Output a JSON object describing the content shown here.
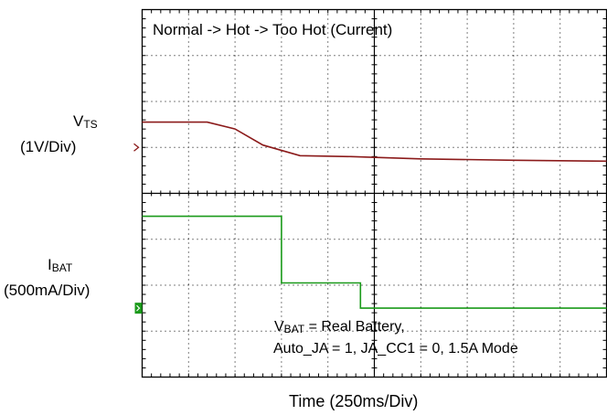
{
  "chart_data": {
    "type": "line",
    "title": "Normal -> Hot -> Too Hot (Current)",
    "xlabel": "Time  (250ms/Div)",
    "x_unit_per_div": "250ms",
    "x_divisions": 10,
    "y_divisions": 8,
    "grid": true,
    "annotations": [
      {
        "main": "V",
        "sub": "BAT",
        "rest": " = Real Battery,"
      },
      {
        "text": "Auto_JA = 1, JA_CC1 = 0, 1.5A Mode"
      }
    ],
    "series": [
      {
        "name": "V_TS",
        "label_main": "V",
        "label_sub": "TS",
        "scale": "(1V/Div)",
        "color": "#8b1a1a",
        "reference_div": 5.0,
        "points_div": [
          [
            0.0,
            5.55
          ],
          [
            1.4,
            5.55
          ],
          [
            2.0,
            5.4
          ],
          [
            2.6,
            5.05
          ],
          [
            3.4,
            4.82
          ],
          [
            4.5,
            4.8
          ],
          [
            6.0,
            4.75
          ],
          [
            8.0,
            4.72
          ],
          [
            10.0,
            4.7
          ]
        ]
      },
      {
        "name": "I_BAT",
        "label_main": "I",
        "label_sub": "BAT",
        "scale": "(500mA/Div)",
        "color": "#1a9a1a",
        "reference_div": 1.5,
        "points_div": [
          [
            0.0,
            3.5
          ],
          [
            3.0,
            3.5
          ],
          [
            3.0,
            2.05
          ],
          [
            4.7,
            2.05
          ],
          [
            4.7,
            1.5
          ],
          [
            10.0,
            1.5
          ]
        ]
      }
    ]
  }
}
